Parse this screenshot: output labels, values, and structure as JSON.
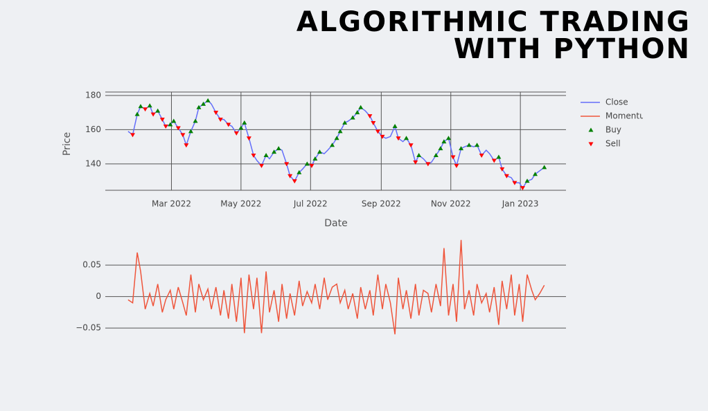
{
  "header": {
    "title_lines": [
      "ALGORITHMIC TRADING",
      "WITH PYTHON"
    ]
  },
  "chart_data": [
    {
      "type": "line",
      "x_label": "Date",
      "y_label": "Price",
      "xlim": [
        1,
        405
      ],
      "xticks": [
        {
          "value": 59,
          "label": "Mar 2022"
        },
        {
          "value": 120,
          "label": "May 2022"
        },
        {
          "value": 181,
          "label": "Jul 2022"
        },
        {
          "value": 243,
          "label": "Sep 2022"
        },
        {
          "value": 304,
          "label": "Nov 2022"
        },
        {
          "value": 365,
          "label": "Jan 2023"
        }
      ],
      "ylim": [
        124.6,
        182
      ],
      "yticks": [
        140,
        160,
        180
      ],
      "grid": true,
      "series": [
        {
          "name": "Close",
          "color": "#636efa",
          "x": [
            21,
            25,
            29,
            32,
            36,
            40,
            43,
            47,
            51,
            54,
            58,
            61,
            65,
            69,
            72,
            76,
            80,
            83,
            87,
            91,
            94,
            98,
            102,
            105,
            109,
            112,
            116,
            120,
            123,
            127,
            131,
            134,
            138,
            142,
            145,
            149,
            153,
            156,
            160,
            163,
            167,
            171,
            174,
            178,
            182,
            185,
            189,
            193,
            196,
            200,
            204,
            207,
            211,
            214,
            218,
            222,
            225,
            229,
            233,
            236,
            240,
            244,
            247,
            251,
            255,
            258,
            262,
            265,
            269,
            273,
            276,
            280,
            284,
            287,
            291,
            295,
            298,
            302,
            306,
            309,
            313,
            316,
            320,
            324,
            327,
            331,
            335,
            338,
            342,
            346,
            349,
            353,
            357,
            360,
            364,
            367,
            371,
            375,
            378,
            382,
            386
          ],
          "values": [
            159,
            157,
            169,
            173.6,
            172,
            174,
            169,
            171,
            166,
            162,
            163,
            165,
            161,
            157,
            151,
            159,
            165,
            173,
            175,
            177,
            175,
            170,
            166,
            166,
            163,
            162,
            158,
            161,
            164,
            155,
            145,
            142,
            139,
            145,
            143,
            147,
            149,
            148,
            140,
            133,
            130,
            135,
            137,
            140,
            139,
            143,
            147,
            146,
            148,
            151,
            155,
            159,
            164,
            165,
            167,
            170,
            173,
            171,
            168,
            164,
            159,
            156,
            155,
            156,
            162,
            155,
            153,
            155,
            151,
            141,
            145,
            143,
            140,
            141,
            145,
            149,
            153,
            155,
            144,
            139,
            149,
            150,
            151,
            150,
            151,
            145,
            148,
            146,
            142,
            144,
            137,
            133,
            132,
            129,
            129,
            126,
            130,
            131,
            134,
            136,
            138
          ]
        },
        {
          "name": "Buy",
          "color": "#008000",
          "marker": "triangle-up",
          "x": [
            29,
            32,
            40,
            47,
            58,
            61,
            76,
            80,
            83,
            87,
            91,
            120,
            123,
            142,
            149,
            153,
            171,
            178,
            185,
            189,
            200,
            204,
            207,
            211,
            218,
            222,
            225,
            255,
            265,
            276,
            291,
            295,
            298,
            302,
            313,
            320,
            327,
            346,
            371,
            378,
            386
          ],
          "values": [
            169,
            173.6,
            174,
            171,
            163,
            165,
            159,
            165,
            173,
            175,
            177,
            161,
            164,
            145,
            147,
            149,
            135,
            140,
            143,
            147,
            151,
            155,
            159,
            164,
            167,
            170,
            173,
            162,
            155,
            145,
            145,
            149,
            153,
            155,
            149,
            151,
            151,
            144,
            130,
            134,
            138
          ]
        },
        {
          "name": "Sell",
          "color": "#ff0000",
          "marker": "triangle-down",
          "x": [
            25,
            36,
            43,
            51,
            54,
            65,
            69,
            72,
            98,
            102,
            109,
            116,
            127,
            131,
            138,
            160,
            163,
            167,
            182,
            233,
            236,
            240,
            244,
            258,
            269,
            273,
            284,
            306,
            309,
            331,
            342,
            349,
            353,
            360,
            367
          ],
          "values": [
            157,
            172,
            169,
            166,
            162,
            161,
            157,
            151,
            170,
            166,
            163,
            158,
            155,
            145,
            139,
            140,
            133,
            130,
            139,
            168,
            164,
            159,
            156,
            155,
            151,
            141,
            140,
            144,
            139,
            145,
            142,
            137,
            133,
            129,
            126
          ]
        }
      ]
    },
    {
      "type": "line",
      "xlim": [
        1,
        405
      ],
      "ylim": [
        -0.062,
        0.092
      ],
      "yticks": [
        0.05,
        0,
        {
          "value": -0.05,
          "label": "−0.05"
        }
      ],
      "grid": true,
      "series": [
        {
          "name": "Momentum",
          "color": "#ef553b",
          "x": [
            21,
            25,
            29,
            32,
            36,
            40,
            43,
            47,
            51,
            54,
            58,
            61,
            65,
            69,
            72,
            76,
            80,
            83,
            87,
            91,
            94,
            98,
            102,
            105,
            109,
            112,
            116,
            120,
            123,
            127,
            131,
            134,
            138,
            142,
            145,
            149,
            153,
            156,
            160,
            163,
            167,
            171,
            174,
            178,
            182,
            185,
            189,
            193,
            196,
            200,
            204,
            207,
            211,
            214,
            218,
            222,
            225,
            229,
            233,
            236,
            240,
            244,
            247,
            251,
            255,
            258,
            262,
            265,
            269,
            273,
            276,
            280,
            284,
            287,
            291,
            295,
            298,
            302,
            306,
            309,
            313,
            316,
            320,
            324,
            327,
            331,
            335,
            338,
            342,
            346,
            349,
            353,
            357,
            360,
            364,
            367,
            371,
            375,
            378,
            382,
            386
          ],
          "values": [
            -0.005,
            -0.01,
            0.07,
            0.04,
            -0.02,
            0.005,
            -0.015,
            0.02,
            -0.025,
            -0.005,
            0.01,
            -0.02,
            0.015,
            -0.01,
            -0.03,
            0.035,
            -0.025,
            0.02,
            -0.005,
            0.012,
            -0.02,
            0.015,
            -0.03,
            0.01,
            -0.035,
            0.02,
            -0.04,
            0.03,
            -0.058,
            0.035,
            -0.02,
            0.03,
            -0.058,
            0.04,
            -0.025,
            0.01,
            -0.04,
            0.02,
            -0.035,
            0.005,
            -0.03,
            0.025,
            -0.015,
            0.008,
            -0.01,
            0.02,
            -0.02,
            0.03,
            -0.005,
            0.015,
            0.02,
            -0.01,
            0.01,
            -0.02,
            0.005,
            -0.035,
            0.015,
            -0.02,
            0.01,
            -0.03,
            0.035,
            -0.02,
            0.02,
            -0.01,
            -0.06,
            0.03,
            -0.02,
            0.01,
            -0.035,
            0.02,
            -0.03,
            0.01,
            0.005,
            -0.025,
            0.02,
            -0.015,
            0.077,
            -0.03,
            0.02,
            -0.04,
            0.09,
            -0.02,
            0.01,
            -0.03,
            0.02,
            -0.01,
            0.005,
            -0.025,
            0.015,
            -0.045,
            0.025,
            -0.02,
            0.035,
            -0.03,
            0.02,
            -0.04,
            0.035,
            0.01,
            -0.005,
            0.005,
            0.018
          ]
        }
      ]
    }
  ]
}
